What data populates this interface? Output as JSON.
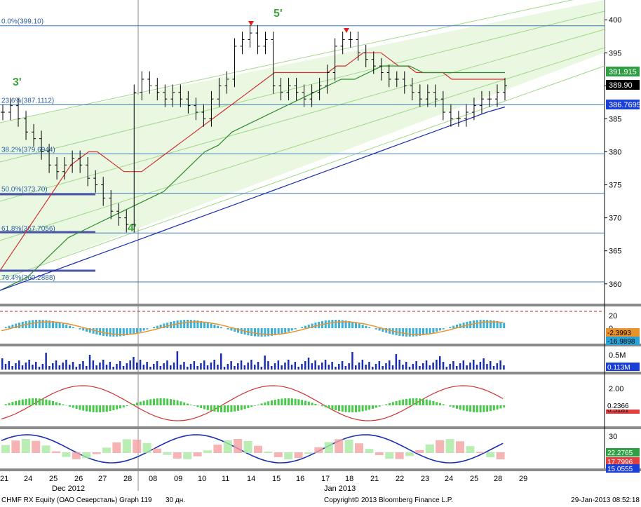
{
  "footer": {
    "ticker": "CHMF RX Equity (ОАО Северсталь) Graph 119",
    "period": "30 дн.",
    "copyright": "Copyright© 2013 Bloomberg Finance L.P.",
    "datetime": "29-Jan-2013 08:52:18"
  },
  "chart_data": {
    "type": "line",
    "x_ticks": [
      "21",
      "24",
      "25",
      "26",
      "27",
      "28",
      "08",
      "09",
      "10",
      "11",
      "14",
      "15",
      "16",
      "17",
      "18",
      "21",
      "22",
      "23",
      "24",
      "25",
      "28",
      "29"
    ],
    "x_month_labels": [
      "Dec 2012",
      "Jan 2013"
    ],
    "main_panel": {
      "y_ticks": [
        400,
        395,
        390,
        385,
        380,
        375,
        370,
        365,
        360
      ],
      "ylim": [
        357,
        403
      ],
      "fibonacci_levels": [
        {
          "label": "0.0%(399.10)",
          "value": 399.1
        },
        {
          "label": "23.6%(387.1112)",
          "value": 387.1112
        },
        {
          "label": "38.2%(379.6944)",
          "value": 379.6944
        },
        {
          "label": "50.0%(373.70)",
          "value": 373.7
        },
        {
          "label": "61.8%(367.7056)",
          "value": 367.7056
        },
        {
          "label": "76.4%(360.2888)",
          "value": 360.2888
        }
      ],
      "wave_labels": [
        {
          "text": "3'",
          "near": "24"
        },
        {
          "text": "4'",
          "near": "28"
        },
        {
          "text": "5'",
          "near": "15"
        }
      ],
      "price_tags": [
        {
          "value": "391.915",
          "color": "#2ea043",
          "text_color": "#ffffff"
        },
        {
          "value": "389.90",
          "color": "#000000",
          "text_color": "#ffffff"
        },
        {
          "value": "386.7695",
          "color": "#1a3fd8",
          "text_color": "#ffffff"
        }
      ],
      "close": [
        386,
        387,
        385,
        383,
        382,
        380,
        378,
        377,
        378,
        379,
        378,
        376,
        375,
        373,
        371,
        370,
        369,
        389,
        391,
        390,
        389,
        388,
        389,
        388,
        387,
        386,
        385,
        388,
        390,
        391,
        396,
        397,
        398,
        396,
        397,
        390,
        389,
        390,
        389,
        388,
        389,
        390,
        392,
        396,
        397,
        397,
        395,
        394,
        393,
        392,
        391,
        391,
        390,
        389,
        388,
        389,
        388,
        386,
        385,
        385,
        386,
        387,
        388,
        388,
        389,
        390
      ],
      "ma_red": [
        362,
        364,
        366,
        368,
        370,
        372,
        374,
        376,
        378,
        379,
        380,
        380,
        379,
        378,
        377,
        377,
        377,
        378,
        379,
        380,
        381,
        382,
        383,
        384,
        385,
        386,
        387,
        388,
        389,
        390,
        391,
        392,
        392,
        392,
        392,
        392,
        392,
        392,
        393,
        393,
        394,
        395,
        395,
        395,
        394,
        393,
        393,
        392,
        392,
        392,
        392,
        391,
        391,
        391,
        391,
        391,
        391,
        391
      ],
      "ma_green": [
        359,
        360,
        361,
        363,
        365,
        367,
        368,
        369,
        370,
        371,
        372,
        373,
        374,
        376,
        378,
        380,
        381,
        383,
        384,
        385,
        386,
        387,
        388,
        389,
        390,
        391,
        391,
        392,
        393,
        393,
        393,
        392,
        392,
        392,
        392,
        392,
        392,
        392
      ],
      "ma_blue": [
        359,
        360,
        361,
        362,
        363,
        364,
        365,
        366,
        367,
        368,
        369,
        370,
        371,
        372,
        373,
        374,
        375,
        376,
        377,
        378,
        379,
        380,
        381,
        382,
        383,
        384,
        385,
        386,
        386.8
      ]
    },
    "indicator1": {
      "y_ticks": [
        20,
        0
      ],
      "tags": [
        {
          "value": "-2.3993",
          "color": "#e8932a"
        },
        {
          "value": "-16.9898",
          "color": "#2aa3d8"
        }
      ]
    },
    "volume": {
      "y_ticks": [
        "0.5M"
      ],
      "tags": [
        {
          "value": "0.113M",
          "color": "#1a3fd8"
        }
      ]
    },
    "indicator3": {
      "y_ticks": [
        "2.00"
      ],
      "tags": [
        {
          "value": "0.5181",
          "color": "#e04040"
        },
        {
          "value": "0.2366",
          "color": "#ffffff"
        }
      ]
    },
    "indicator4": {
      "y_ticks": [
        "30"
      ],
      "tags": [
        {
          "value": "22.2765",
          "color": "#2ea043"
        },
        {
          "value": "17.7996",
          "color": "#e04040"
        },
        {
          "value": "15.0555",
          "color": "#1a3fd8"
        }
      ]
    }
  }
}
